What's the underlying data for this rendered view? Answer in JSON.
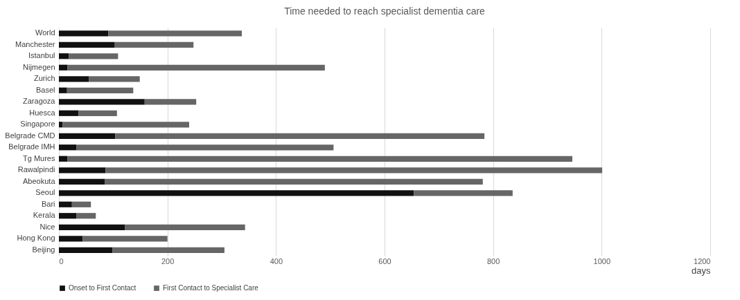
{
  "chart_data": {
    "type": "bar",
    "title": "Time needed to reach specialist dementia care",
    "xlabel": "days",
    "orientation": "horizontal",
    "stacked": true,
    "categories": [
      "World",
      "Manchester",
      "Istanbul",
      "Nijmegen",
      "Zurich",
      "Basel",
      "Zaragoza",
      "Huesca",
      "Singapore",
      "Belgrade CMD",
      "Belgrade IMH",
      "Tg Mures",
      "Rawalpindi",
      "Abeokuta",
      "Seoul",
      "Bari",
      "Kerala",
      "Nice",
      "Hong Kong",
      "Beijing"
    ],
    "series": [
      {
        "name": "Onset to First Contact",
        "color": "#111111",
        "values": [
          91,
          103,
          18,
          16,
          55,
          15,
          158,
          36,
          7,
          104,
          32,
          16,
          86,
          85,
          654,
          24,
          32,
          122,
          44,
          99
        ]
      },
      {
        "name": "First Contact to Specialist Care",
        "color": "#666666",
        "values": [
          246,
          145,
          91,
          474,
          94,
          122,
          95,
          71,
          233,
          680,
          474,
          930,
          915,
          696,
          182,
          35,
          36,
          221,
          156,
          206
        ]
      }
    ],
    "xlim": [
      0,
      1200
    ],
    "xticks": [
      0,
      200,
      400,
      600,
      800,
      1000,
      1200
    ],
    "grid": "x",
    "legend": "bottom"
  }
}
